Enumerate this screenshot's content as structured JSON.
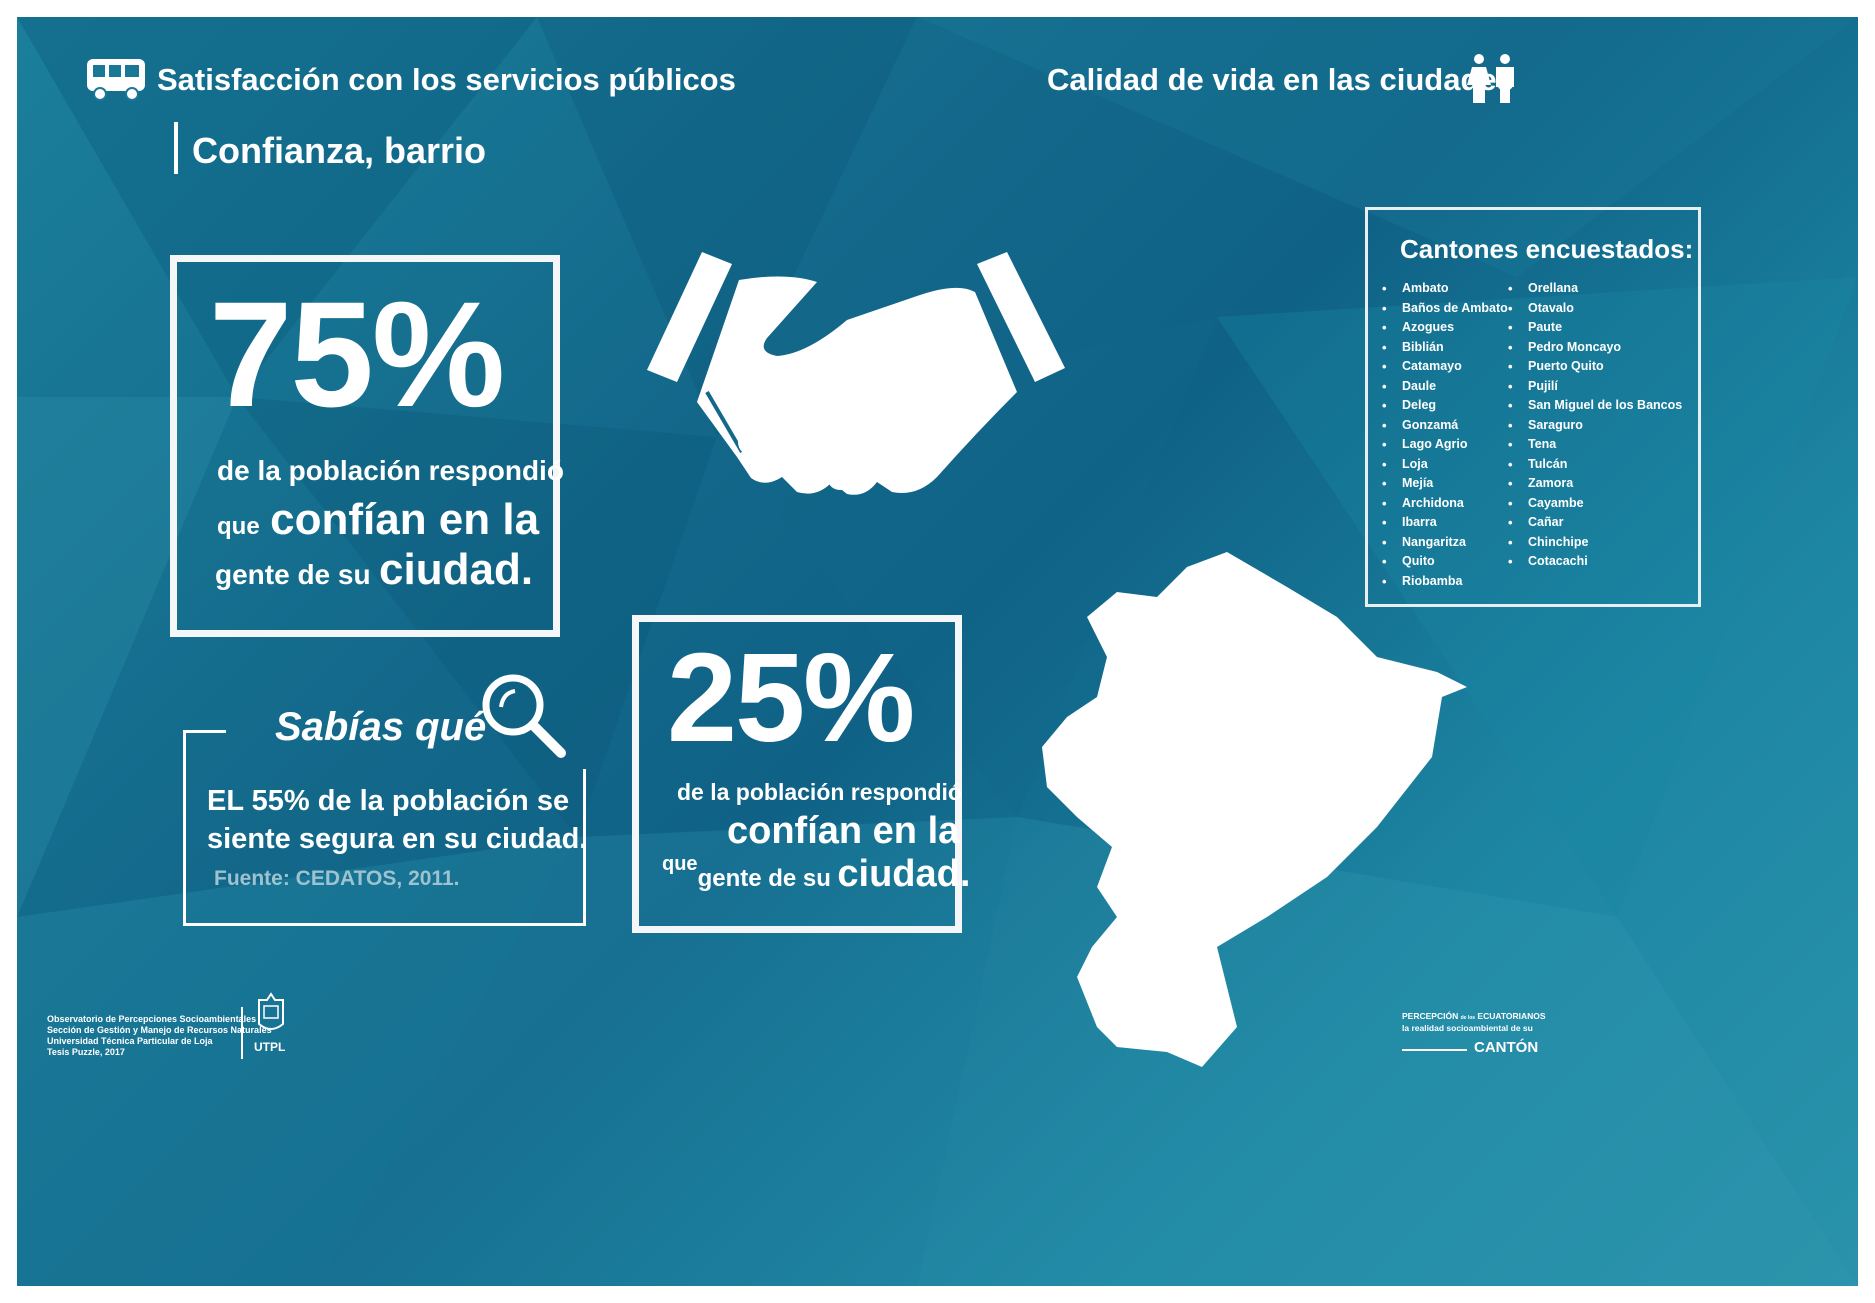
{
  "header": {
    "left_title": "Satisfacción con los servicios públicos",
    "right_title": "Calidad de vida en las ciudades",
    "section_title": "Confianza, barrio"
  },
  "stat_main": {
    "percent": "75%",
    "line1": "de la población respondió",
    "line2_small": "que",
    "line2_big": "confían en la",
    "line3_small": "gente de su",
    "line3_big": "ciudad."
  },
  "stat_secondary": {
    "percent": "25%",
    "line1": "de la población respondió",
    "line2_big": "confían en la",
    "line3_que": "que",
    "line3_small": "gente de su",
    "line3_big": "ciudad."
  },
  "did_you_know": {
    "title": "Sabías qué",
    "text_line1": "EL 55% de la población se",
    "text_line2": "siente segura  en su ciudad.",
    "source": "Fuente: CEDATOS, 2011."
  },
  "cantones": {
    "title": "Cantones encuestados:",
    "col1": [
      "Ambato",
      "Baños de Ambato",
      "Azogues",
      "Biblián",
      "Catamayo",
      "Daule",
      "Deleg",
      "Gonzamá",
      "Lago Agrio",
      "Loja",
      "Mejía",
      "Archidona",
      "Ibarra",
      "Nangaritza",
      "Quito",
      "Riobamba"
    ],
    "col2": [
      "Orellana",
      "Otavalo",
      "Paute",
      "Pedro Moncayo",
      "Puerto Quito",
      "Pujilí",
      "San Miguel de los Bancos",
      "Saraguro",
      "Tena",
      "Tulcán",
      "Zamora",
      "Cayambe",
      "Cañar",
      "Chinchipe",
      "Cotacachi"
    ]
  },
  "footer": {
    "org_lines": [
      "Observatorio de Percepciones Socioambientales",
      "Sección de Gestión y Manejo de Recursos Naturales",
      "Universidad Técnica Particular de Loja",
      "Tesis Puzzle, 2017"
    ],
    "utpl": "UTPL",
    "brand_line1a": "PERCEPCIÓN",
    "brand_line1b": "de los",
    "brand_line1c": "ECUATORIANOS",
    "brand_line2": "la realidad socioambiental de su",
    "brand_line3": "CANTÓN"
  },
  "icons": [
    "bus-icon",
    "people-icon",
    "handshake-icon",
    "magnifier-icon",
    "ecuador-map",
    "utpl-crest"
  ],
  "colors": {
    "background": "#16718f",
    "foreground": "#ffffff"
  }
}
